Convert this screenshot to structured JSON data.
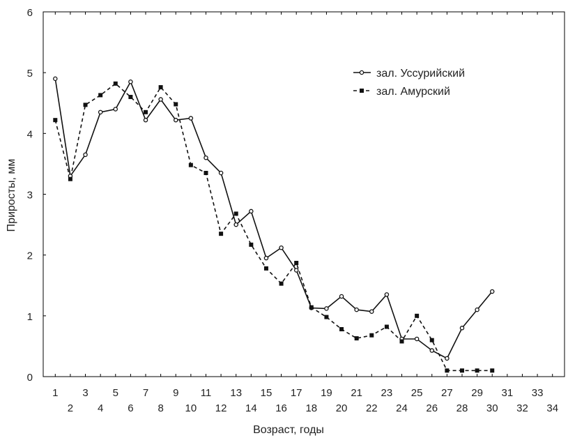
{
  "chart_data": {
    "type": "line",
    "title": "",
    "xlabel": "Возраст, годы",
    "ylabel": "Приросты, мм",
    "xlim": [
      0.2,
      34.8
    ],
    "ylim": [
      0,
      6
    ],
    "xticks": [
      1,
      2,
      3,
      4,
      5,
      6,
      7,
      8,
      9,
      10,
      11,
      12,
      13,
      14,
      15,
      16,
      17,
      18,
      19,
      20,
      21,
      22,
      23,
      24,
      25,
      26,
      27,
      28,
      29,
      30,
      31,
      32,
      33,
      34
    ],
    "yticks": [
      0,
      1,
      2,
      3,
      4,
      5,
      6
    ],
    "grid": false,
    "legend_position": "top-right",
    "series": [
      {
        "name": "зал. Уссурийский",
        "line": "solid",
        "marker": "open-circle",
        "color": "#111111",
        "x": [
          1,
          2,
          3,
          4,
          5,
          6,
          7,
          8,
          9,
          10,
          11,
          12,
          13,
          14,
          15,
          16,
          17,
          18,
          19,
          20,
          21,
          22,
          23,
          24,
          25,
          26,
          27,
          28,
          29,
          30
        ],
        "values": [
          4.9,
          3.3,
          3.65,
          4.35,
          4.4,
          4.85,
          4.22,
          4.56,
          4.22,
          4.25,
          3.6,
          3.35,
          2.5,
          2.72,
          1.95,
          2.12,
          1.75,
          1.13,
          1.12,
          1.32,
          1.1,
          1.07,
          1.35,
          0.62,
          0.62,
          0.43,
          0.3,
          0.8,
          1.1,
          1.4
        ]
      },
      {
        "name": "зал. Амурский",
        "line": "dashed",
        "marker": "filled-square",
        "color": "#111111",
        "x": [
          1,
          2,
          3,
          4,
          5,
          6,
          7,
          8,
          9,
          10,
          11,
          12,
          13,
          14,
          15,
          16,
          17,
          18,
          19,
          20,
          21,
          22,
          23,
          24,
          25,
          26,
          27,
          28,
          29,
          30
        ],
        "values": [
          4.22,
          3.25,
          4.47,
          4.63,
          4.82,
          4.6,
          4.35,
          4.76,
          4.48,
          3.48,
          3.35,
          2.35,
          2.68,
          2.17,
          1.78,
          1.53,
          1.87,
          1.14,
          0.98,
          0.78,
          0.63,
          0.68,
          0.82,
          0.58,
          1.0,
          0.6,
          0.1,
          0.1,
          0.1,
          0.1
        ]
      }
    ]
  }
}
